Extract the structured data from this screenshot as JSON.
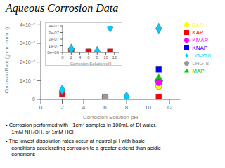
{
  "chart_data": [
    {
      "type": "scatter",
      "title": "Aqueous Corrosion Data",
      "xlabel": "Corrosion Solution pH",
      "ylabel": "Corrosion Rate (g·cm⁻²·min⁻¹)",
      "series": [
        {
          "name": "KAP",
          "color": "#ff0000",
          "marker": "square",
          "x": [
            2,
            6,
            11
          ],
          "values": [
            3e-08,
            1.3e-08,
            1.3e-08
          ]
        },
        {
          "name": "MAP",
          "color": "#00cc00",
          "marker": "triangle",
          "x": [
            11
          ],
          "values": [
            1.1e-07
          ]
        },
        {
          "name": "BAP",
          "color": "#ffff00",
          "marker": "circle",
          "x": [
            11
          ],
          "values": [
            7e-08
          ]
        },
        {
          "name": "KNAP",
          "color": "#0000ff",
          "marker": "square",
          "x": [
            11
          ],
          "values": [
            1.6e-07
          ]
        },
        {
          "name": "KMAP",
          "color": "#ff00ff",
          "marker": "circle",
          "x": [
            11
          ],
          "values": [
            9e-08
          ]
        },
        {
          "name": "LG-770",
          "color": "#00ccff",
          "marker": "diamond",
          "x": [
            2,
            8,
            11
          ],
          "values": [
            5e-08,
            1.3e-08,
            3.8e-07
          ]
        },
        {
          "name": "LHG-8",
          "color": "#999999",
          "marker": "circle",
          "x": [
            6
          ],
          "values": [
            1.3e-08
          ]
        }
      ],
      "xlim": [
        0,
        13
      ],
      "xticks": [
        0,
        2,
        4,
        6,
        8,
        10,
        12
      ],
      "ylim": [
        0,
        4.2e-07
      ],
      "yticks": [
        0,
        {
          "value": 1e-07,
          "label": "1×10⁻⁷"
        },
        {
          "value": 2e-07,
          "label": "2×10⁻⁷"
        },
        {
          "value": 3e-07,
          "label": "3×10⁻⁷"
        },
        {
          "value": 4e-07,
          "label": "4×10⁻⁷"
        }
      ],
      "grid": false,
      "legend": "upper right",
      "annotations": [
        "• Corrosion performed with ~1cm² samples in 100mL of DI water,\n    1mM NH₄OH, or 1mM HCl",
        "• The lowest dissolution rates occur at neutral pH with basic\n    conditions accelerating corrosion to a greater extend than acidic\n    conditions"
      ]
    },
    {
      "type": "scatter",
      "xlabel": "Corrosion Solution pH",
      "series": [
        {
          "name": "KAP",
          "color": "#ff0000",
          "marker": "square",
          "x": [
            2,
            6,
            11
          ],
          "values": [
            3e-08,
            1.3e-08,
            1.3e-08
          ]
        },
        {
          "name": "LG-770",
          "color": "#00ccff",
          "marker": "diamond",
          "x": [
            2,
            8,
            11
          ],
          "values": [
            5e-08,
            1.3e-08,
            3.8e-07
          ]
        }
      ],
      "xlim": [
        0,
        13
      ],
      "xticks": [
        0,
        2,
        4,
        6,
        8,
        10,
        12
      ],
      "ylim": [
        0,
        4e-07
      ],
      "yticks": [
        {
          "value": 0,
          "label": "0e+00"
        },
        {
          "value": 1e-07,
          "label": "1e-07"
        },
        {
          "value": 2e-07,
          "label": "2e-07"
        },
        {
          "value": 3e-07,
          "label": "3e-07"
        },
        {
          "value": 4e-07,
          "label": "4e-07"
        }
      ],
      "grid": false
    }
  ]
}
